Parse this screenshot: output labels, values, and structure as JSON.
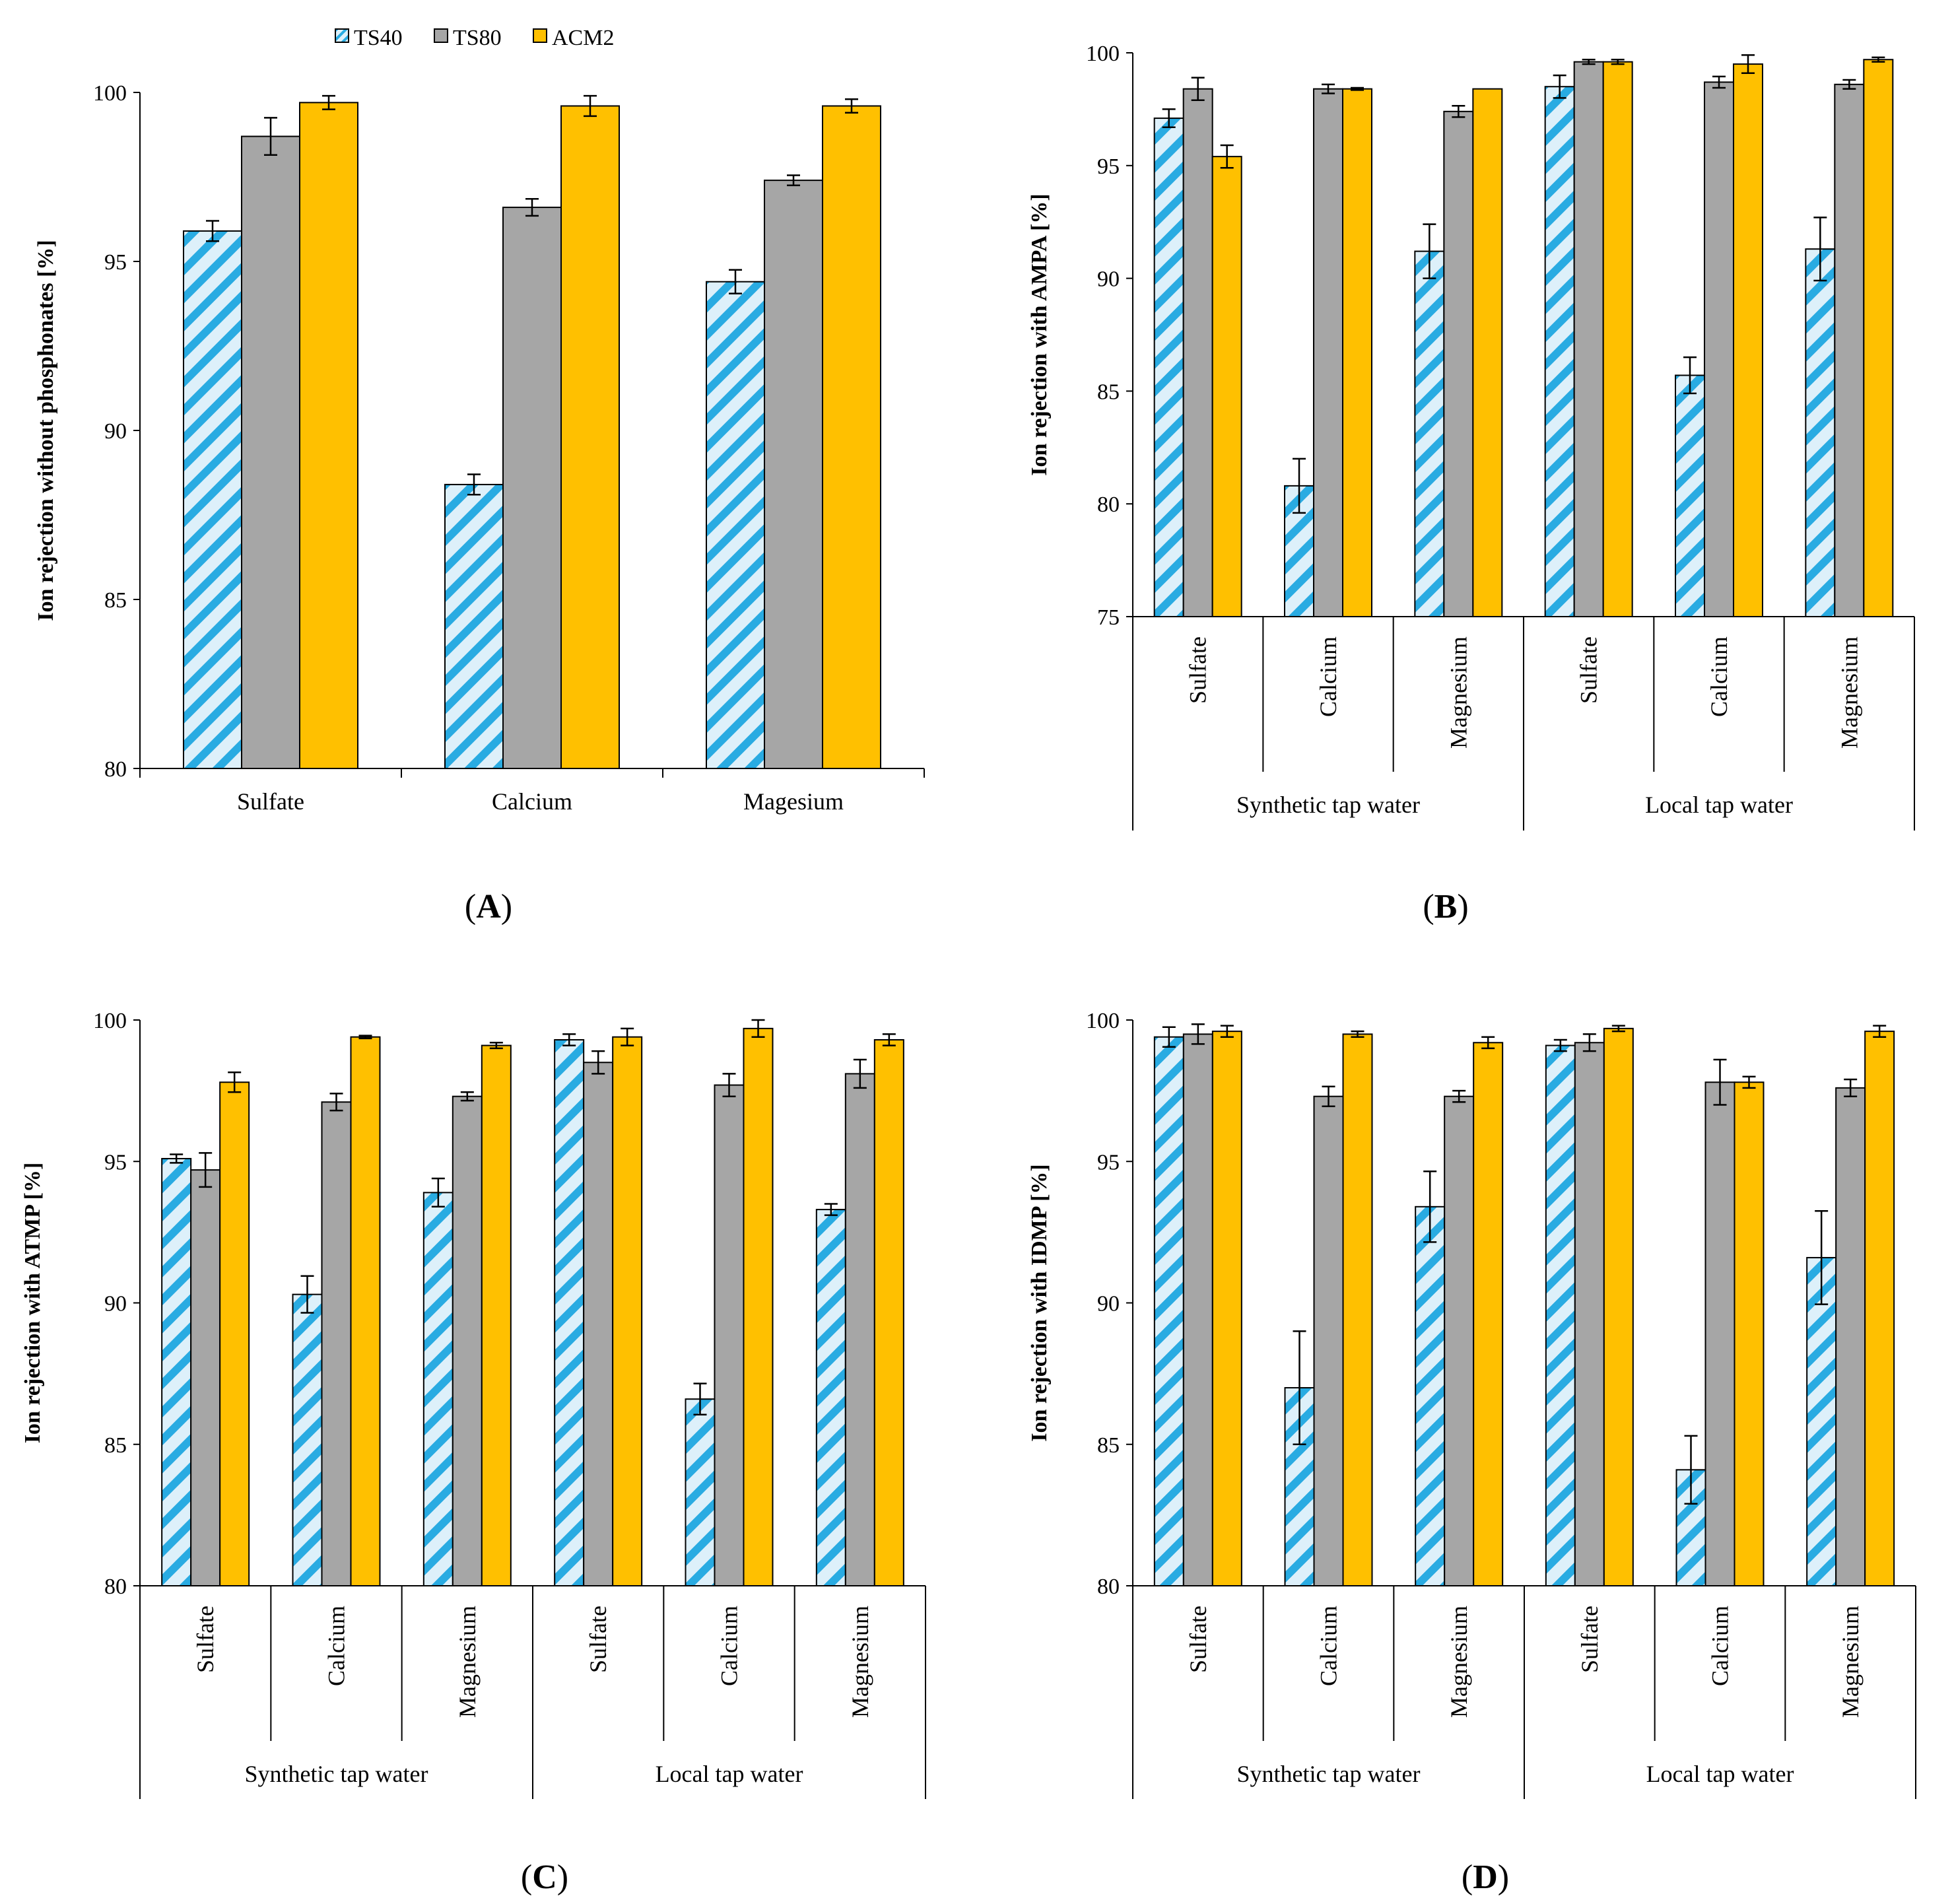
{
  "legend": [
    {
      "name": "TS40",
      "color": "#29ABE2",
      "pattern": "hatch"
    },
    {
      "name": "TS80",
      "color": "#A6A6A6",
      "pattern": "solid"
    },
    {
      "name": "ACM2",
      "color": "#FFC000",
      "pattern": "solid"
    }
  ],
  "chart_data": [
    {
      "id": "A",
      "type": "bar",
      "panel_label": "A",
      "ylabel": "Ion rejection without phosphonates [%]",
      "ylim": [
        80,
        100
      ],
      "yticks": [
        80,
        85,
        90,
        95,
        100
      ],
      "categories": [
        "Sulfate",
        "Calcium",
        "Magesium"
      ],
      "groups": [],
      "series": [
        {
          "name": "TS40",
          "values": [
            95.9,
            88.4,
            94.4
          ],
          "errors": [
            0.3,
            0.3,
            0.35
          ]
        },
        {
          "name": "TS80",
          "values": [
            98.7,
            96.6,
            97.4
          ],
          "errors": [
            0.55,
            0.25,
            0.15
          ]
        },
        {
          "name": "ACM2",
          "values": [
            99.7,
            99.6,
            99.6
          ],
          "errors": [
            0.2,
            0.3,
            0.2
          ]
        }
      ]
    },
    {
      "id": "B",
      "type": "bar",
      "panel_label": "B",
      "ylabel": "Ion rejection with AMPA [%]",
      "ylim": [
        75,
        100
      ],
      "yticks": [
        75,
        80,
        85,
        90,
        95,
        100
      ],
      "categories": [
        "Sulfate",
        "Calcium",
        "Magnesium",
        "Sulfate",
        "Calcium",
        "Magnesium"
      ],
      "groups": [
        "Synthetic tap water",
        "Local tap water"
      ],
      "series": [
        {
          "name": "TS40",
          "values": [
            97.1,
            80.8,
            91.2,
            98.5,
            85.7,
            91.3
          ],
          "errors": [
            0.4,
            1.2,
            1.2,
            0.5,
            0.8,
            1.4
          ]
        },
        {
          "name": "TS80",
          "values": [
            98.4,
            98.4,
            97.4,
            99.6,
            98.7,
            98.6
          ],
          "errors": [
            0.5,
            0.2,
            0.25,
            0.1,
            0.25,
            0.2
          ]
        },
        {
          "name": "ACM2",
          "values": [
            95.4,
            98.4,
            98.4,
            99.6,
            99.5,
            99.7
          ],
          "errors": [
            0.5,
            0.05,
            0.0,
            0.1,
            0.4,
            0.1
          ]
        }
      ]
    },
    {
      "id": "C",
      "type": "bar",
      "panel_label": "C",
      "ylabel": "Ion rejection with ATMP [%]",
      "ylim": [
        80,
        100
      ],
      "yticks": [
        80,
        85,
        90,
        95,
        100
      ],
      "categories": [
        "Sulfate",
        "Calcium",
        "Magnesium",
        "Sulfate",
        "Calcium",
        "Magnesium"
      ],
      "groups": [
        "Synthetic tap water",
        "Local tap water"
      ],
      "series": [
        {
          "name": "TS40",
          "values": [
            95.1,
            90.3,
            93.9,
            99.3,
            86.6,
            93.3
          ],
          "errors": [
            0.15,
            0.65,
            0.5,
            0.2,
            0.55,
            0.2
          ]
        },
        {
          "name": "TS80",
          "values": [
            94.7,
            97.1,
            97.3,
            98.5,
            97.7,
            98.1
          ],
          "errors": [
            0.6,
            0.3,
            0.15,
            0.4,
            0.4,
            0.5
          ]
        },
        {
          "name": "ACM2",
          "values": [
            97.8,
            99.4,
            99.1,
            99.4,
            99.7,
            99.3
          ],
          "errors": [
            0.35,
            0.05,
            0.1,
            0.3,
            0.3,
            0.2
          ]
        }
      ]
    },
    {
      "id": "D",
      "type": "bar",
      "panel_label": "D",
      "ylabel": "Ion rejection with IDMP [%]",
      "ylim": [
        80,
        100
      ],
      "yticks": [
        80,
        85,
        90,
        95,
        100
      ],
      "categories": [
        "Sulfate",
        "Calcium",
        "Magnesium",
        "Sulfate",
        "Calcium",
        "Magnesium"
      ],
      "groups": [
        "Synthetic tap water",
        "Local tap water"
      ],
      "series": [
        {
          "name": "TS40",
          "values": [
            99.4,
            87.0,
            93.4,
            99.1,
            84.1,
            91.6
          ],
          "errors": [
            0.35,
            2.0,
            1.25,
            0.2,
            1.2,
            1.65
          ]
        },
        {
          "name": "TS80",
          "values": [
            99.5,
            97.3,
            97.3,
            99.2,
            97.8,
            97.6
          ],
          "errors": [
            0.35,
            0.35,
            0.2,
            0.3,
            0.8,
            0.3
          ]
        },
        {
          "name": "ACM2",
          "values": [
            99.6,
            99.5,
            99.2,
            99.7,
            97.8,
            99.6
          ],
          "errors": [
            0.2,
            0.1,
            0.2,
            0.1,
            0.2,
            0.2
          ]
        }
      ]
    }
  ]
}
